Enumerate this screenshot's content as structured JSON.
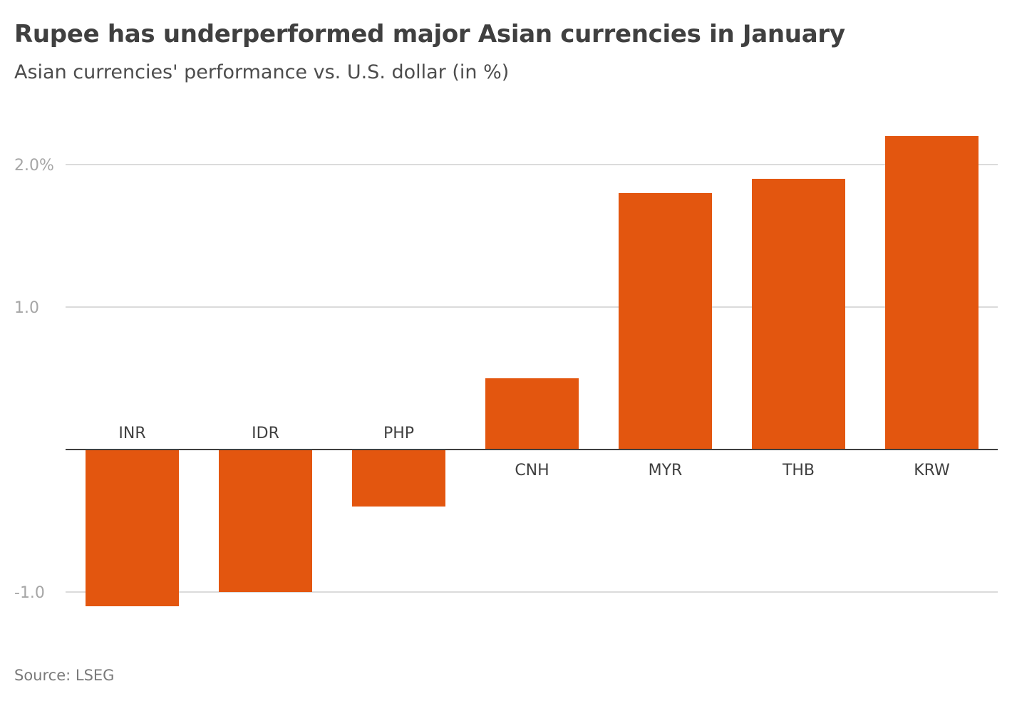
{
  "header": {
    "title": "Rupee has underperformed major Asian currencies in January",
    "subtitle": "Asian currencies' performance vs. U.S. dollar (in %)"
  },
  "footer": {
    "source": "Source: LSEG"
  },
  "colors": {
    "bar": "#e3560f",
    "grid": "#cfcfcf",
    "zero_line": "#404040"
  },
  "chart_data": {
    "type": "bar",
    "title": "Rupee has underperformed major Asian currencies in January",
    "subtitle": "Asian currencies' performance vs. U.S. dollar (in %)",
    "xlabel": "",
    "ylabel": "",
    "categories": [
      "INR",
      "IDR",
      "PHP",
      "CNH",
      "MYR",
      "THB",
      "KRW"
    ],
    "values": [
      -1.1,
      -1.0,
      -0.4,
      0.5,
      1.8,
      1.9,
      2.2
    ],
    "ylim": [
      -1.3,
      2.3
    ],
    "yticks": [
      -1.0,
      1.0,
      2.0
    ],
    "ytick_labels": [
      "-1.0",
      "1.0",
      "2.0%"
    ],
    "grid": true,
    "legend": "none"
  }
}
